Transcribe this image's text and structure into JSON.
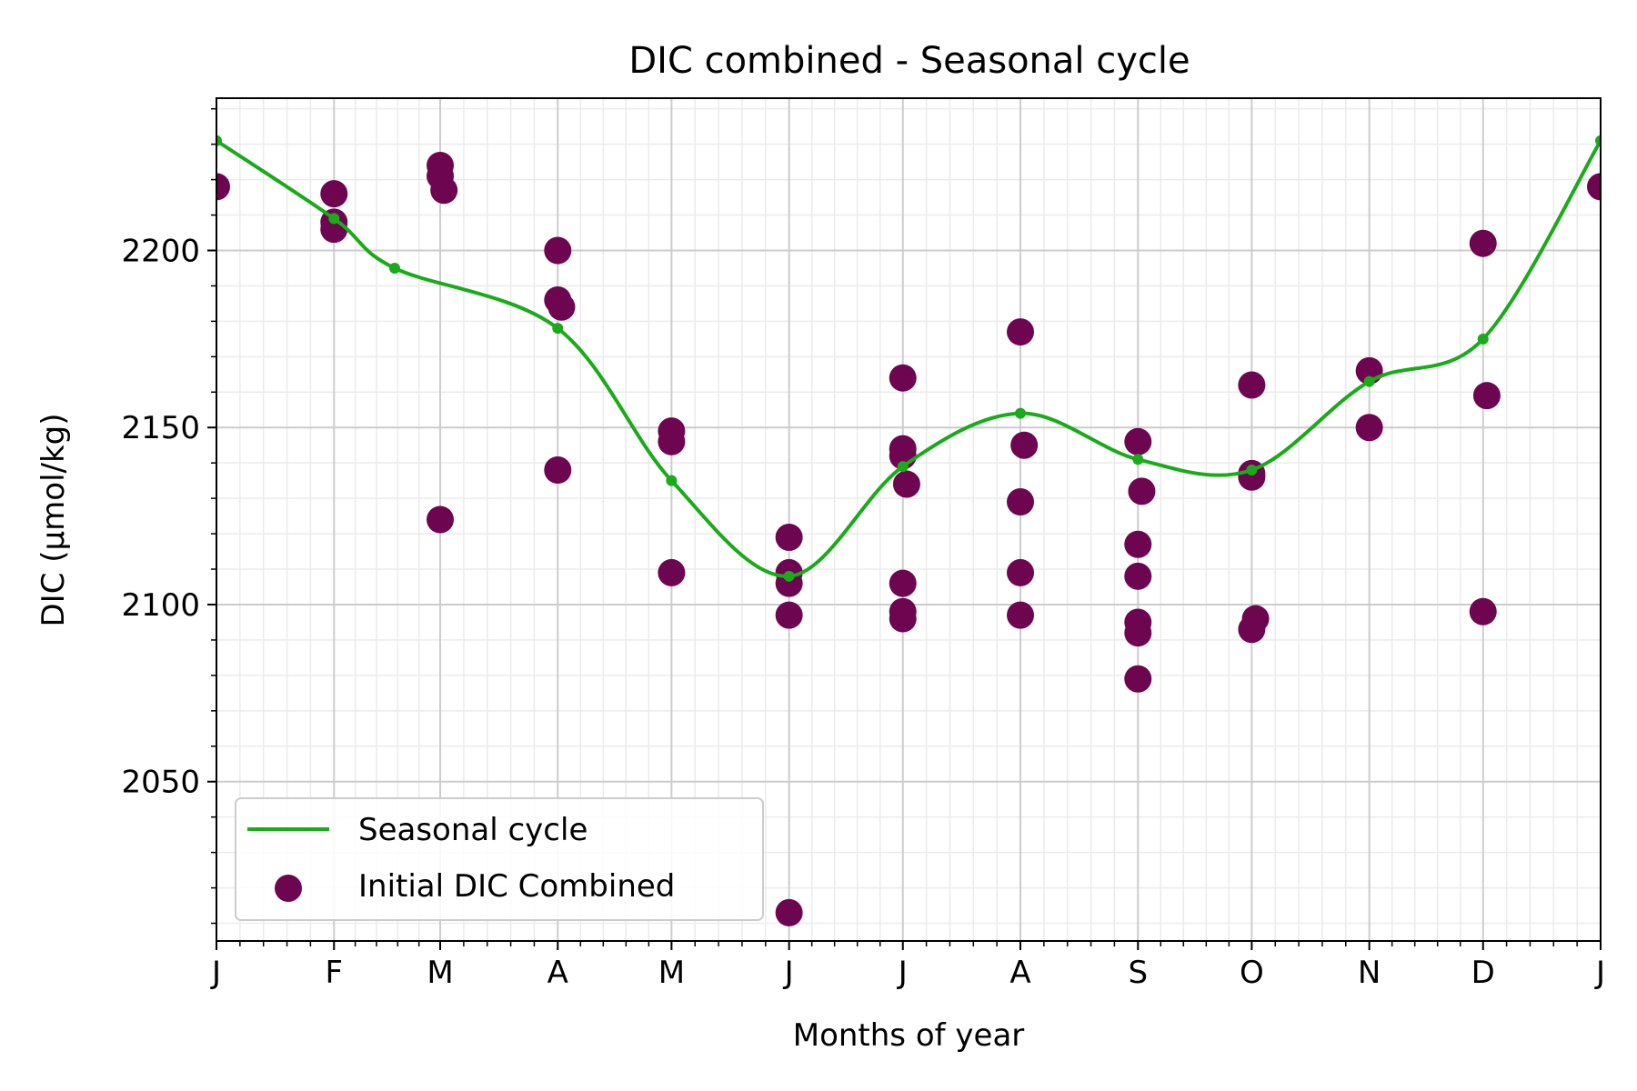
{
  "chart_data": {
    "type": "scatter",
    "title": "DIC combined - Seasonal cycle",
    "xlabel": "Months of year",
    "ylabel": "DIC (µmol/kg)",
    "xlim": [
      0,
      365
    ],
    "ylim": [
      2005,
      2243
    ],
    "x_ticks": [
      {
        "value": 0,
        "label": "J"
      },
      {
        "value": 31,
        "label": "F"
      },
      {
        "value": 59,
        "label": "M"
      },
      {
        "value": 90,
        "label": "A"
      },
      {
        "value": 120,
        "label": "M"
      },
      {
        "value": 151,
        "label": "J"
      },
      {
        "value": 181,
        "label": "J"
      },
      {
        "value": 212,
        "label": "A"
      },
      {
        "value": 243,
        "label": "S"
      },
      {
        "value": 273,
        "label": "O"
      },
      {
        "value": 304,
        "label": "N"
      },
      {
        "value": 334,
        "label": "D"
      },
      {
        "value": 365,
        "label": "J"
      }
    ],
    "y_ticks": [
      {
        "value": 2050,
        "label": "2050"
      },
      {
        "value": 2100,
        "label": "2100"
      },
      {
        "value": 2150,
        "label": "2150"
      },
      {
        "value": 2200,
        "label": "2200"
      }
    ],
    "grid": "major and minor",
    "legend_position": "lower-left",
    "series": [
      {
        "name": "Seasonal cycle",
        "kind": "line",
        "color": "#1aaa1a",
        "points": [
          {
            "x": 0,
            "y": 2231
          },
          {
            "x": 31,
            "y": 2209
          },
          {
            "x": 47,
            "y": 2195
          },
          {
            "x": 90,
            "y": 2178
          },
          {
            "x": 120,
            "y": 2135
          },
          {
            "x": 151,
            "y": 2108
          },
          {
            "x": 181,
            "y": 2139
          },
          {
            "x": 212,
            "y": 2154
          },
          {
            "x": 243,
            "y": 2141
          },
          {
            "x": 273,
            "y": 2138
          },
          {
            "x": 304,
            "y": 2163
          },
          {
            "x": 334,
            "y": 2175
          },
          {
            "x": 365,
            "y": 2231
          }
        ]
      },
      {
        "name": "Initial DIC Combined",
        "kind": "scatter",
        "color": "#6e0550",
        "points": [
          {
            "x": 0,
            "y": 2218
          },
          {
            "x": 365,
            "y": 2218
          },
          {
            "x": 31,
            "y": 2216
          },
          {
            "x": 31,
            "y": 2208
          },
          {
            "x": 31,
            "y": 2206
          },
          {
            "x": 59,
            "y": 2224
          },
          {
            "x": 59,
            "y": 2221
          },
          {
            "x": 60,
            "y": 2217
          },
          {
            "x": 59,
            "y": 2124
          },
          {
            "x": 90,
            "y": 2200
          },
          {
            "x": 90,
            "y": 2186
          },
          {
            "x": 91,
            "y": 2184
          },
          {
            "x": 90,
            "y": 2138
          },
          {
            "x": 120,
            "y": 2149
          },
          {
            "x": 120,
            "y": 2146
          },
          {
            "x": 120,
            "y": 2109
          },
          {
            "x": 151,
            "y": 2119
          },
          {
            "x": 151,
            "y": 2109
          },
          {
            "x": 151,
            "y": 2106
          },
          {
            "x": 151,
            "y": 2097
          },
          {
            "x": 151,
            "y": 2013
          },
          {
            "x": 181,
            "y": 2164
          },
          {
            "x": 181,
            "y": 2144
          },
          {
            "x": 181,
            "y": 2142
          },
          {
            "x": 182,
            "y": 2134
          },
          {
            "x": 181,
            "y": 2106
          },
          {
            "x": 181,
            "y": 2098
          },
          {
            "x": 181,
            "y": 2096
          },
          {
            "x": 212,
            "y": 2177
          },
          {
            "x": 213,
            "y": 2145
          },
          {
            "x": 212,
            "y": 2129
          },
          {
            "x": 212,
            "y": 2109
          },
          {
            "x": 212,
            "y": 2097
          },
          {
            "x": 243,
            "y": 2146
          },
          {
            "x": 244,
            "y": 2132
          },
          {
            "x": 243,
            "y": 2117
          },
          {
            "x": 243,
            "y": 2108
          },
          {
            "x": 243,
            "y": 2095
          },
          {
            "x": 243,
            "y": 2092
          },
          {
            "x": 243,
            "y": 2079
          },
          {
            "x": 273,
            "y": 2162
          },
          {
            "x": 273,
            "y": 2137
          },
          {
            "x": 273,
            "y": 2136
          },
          {
            "x": 274,
            "y": 2096
          },
          {
            "x": 273,
            "y": 2093
          },
          {
            "x": 304,
            "y": 2166
          },
          {
            "x": 304,
            "y": 2150
          },
          {
            "x": 334,
            "y": 2202
          },
          {
            "x": 335,
            "y": 2159
          },
          {
            "x": 334,
            "y": 2098
          }
        ]
      }
    ]
  }
}
